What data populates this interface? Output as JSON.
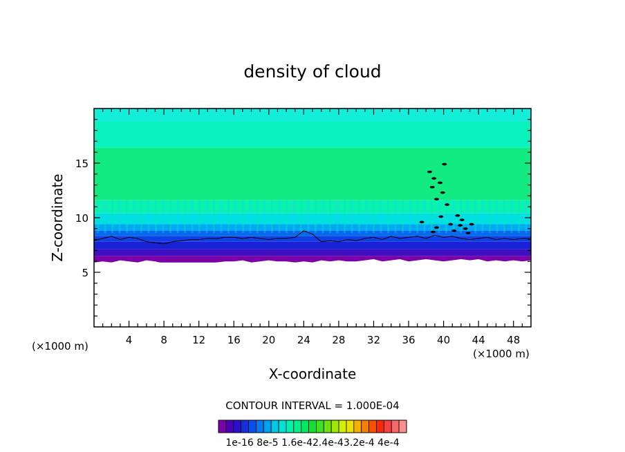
{
  "chart_data": {
    "type": "heatmap",
    "title": "density of cloud",
    "xlabel": "X-coordinate",
    "ylabel": "Z-coordinate",
    "x_unit_left": "(×1000 m)",
    "x_unit_right": "(×1000 m)",
    "xlim": [
      0,
      50
    ],
    "ylim": [
      0,
      20
    ],
    "x_ticks": [
      4,
      8,
      12,
      16,
      20,
      24,
      28,
      32,
      36,
      40,
      44,
      48
    ],
    "y_ticks": [
      5,
      10,
      15
    ],
    "contour_interval_label": "CONTOUR INTERVAL = 1.000E-04",
    "colorbar": {
      "colors": [
        "#7a00a8",
        "#4c00b8",
        "#2a10cc",
        "#1430dc",
        "#0a50e8",
        "#0a78f0",
        "#00a0f0",
        "#00c8e8",
        "#00e0d8",
        "#00f0b0",
        "#00f090",
        "#00e860",
        "#10e030",
        "#40e020",
        "#70e010",
        "#a0e800",
        "#d0f000",
        "#f0e000",
        "#f8b000",
        "#f88000",
        "#f85000",
        "#f82800",
        "#f84040",
        "#f86868",
        "#f89090"
      ],
      "tick_labels": [
        "1e-16",
        "8e-5",
        "1.6e-4",
        "2.4e-4",
        "3.2e-4",
        "4e-4"
      ],
      "tick_label_text": "1e-16  8e-5  1.6e-42.4e-43.2e-4  4e-4"
    },
    "bands": [
      {
        "z0": 18.8,
        "z1": 20.0,
        "color": "#12eed8"
      },
      {
        "z0": 16.4,
        "z1": 18.8,
        "color": "#0af3bf"
      },
      {
        "z0": 11.6,
        "z1": 16.4,
        "color": "#12eb82"
      },
      {
        "z0": 10.4,
        "z1": 11.6,
        "color": "#0af2b0"
      },
      {
        "z0": 9.4,
        "z1": 10.4,
        "color": "#00e0e0"
      },
      {
        "z0": 8.8,
        "z1": 9.4,
        "color": "#00a8f2"
      },
      {
        "z0": 8.3,
        "z1": 8.8,
        "color": "#0a68ee"
      },
      {
        "z0": 7.8,
        "z1": 8.3,
        "color": "#0f40e4"
      },
      {
        "z0": 7.1,
        "z1": 7.8,
        "color": "#1a20d4"
      },
      {
        "z0": 6.5,
        "z1": 7.1,
        "color": "#4010c0"
      },
      {
        "z0": 5.9,
        "z1": 6.5,
        "color": "#7a00a8"
      }
    ],
    "cloud_base_z": [
      5.9,
      6.0,
      5.9,
      6.1,
      6.0,
      5.9,
      6.1,
      6.0,
      5.8,
      5.8,
      5.6,
      5.5,
      5.6,
      5.8,
      5.9,
      6.0,
      6.0,
      6.1,
      5.9,
      6.0,
      6.1,
      6.0,
      6.0,
      5.9,
      6.0,
      5.9,
      6.1,
      6.0,
      6.1,
      6.0,
      6.0,
      6.1,
      6.2,
      6.0,
      6.1,
      6.2,
      6.0,
      6.1,
      6.2,
      6.1,
      6.0,
      6.1,
      6.2,
      6.1,
      6.2,
      6.0,
      6.1,
      6.0,
      6.1,
      6.0,
      6.1
    ],
    "contour_z": [
      7.9,
      8.1,
      8.3,
      8.0,
      8.2,
      8.1,
      7.8,
      7.7,
      7.6,
      7.8,
      7.9,
      8.0,
      8.0,
      8.1,
      8.1,
      8.2,
      8.2,
      8.1,
      8.2,
      8.1,
      8.0,
      8.1,
      8.1,
      8.2,
      8.8,
      8.5,
      7.8,
      7.9,
      7.8,
      8.0,
      7.9,
      8.1,
      8.2,
      8.0,
      8.3,
      8.1,
      8.2,
      8.3,
      8.1,
      8.4,
      8.2,
      8.3,
      8.1,
      8.0,
      8.1,
      8.2,
      8.0,
      8.1,
      8.0,
      8.1,
      8.1
    ]
  }
}
